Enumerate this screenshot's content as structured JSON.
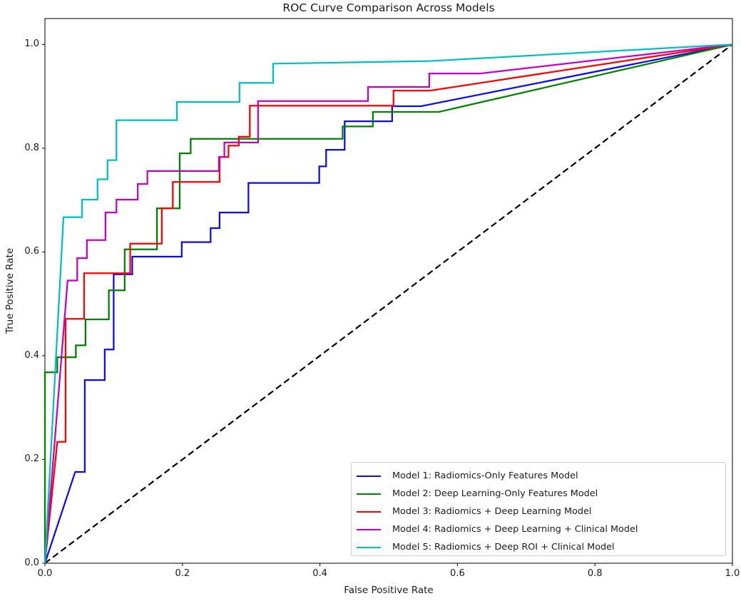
{
  "chart_data": {
    "type": "line",
    "title": "ROC Curve Comparison Across Models",
    "xlabel": "False Positive Rate",
    "ylabel": "True Positive Rate",
    "xlim": [
      0.0,
      1.0
    ],
    "ylim": [
      0.0,
      1.05
    ],
    "xticks": [
      {
        "value": 0.0,
        "label": "0.0"
      },
      {
        "value": 0.2,
        "label": "0.2"
      },
      {
        "value": 0.4,
        "label": "0.4"
      },
      {
        "value": 0.6,
        "label": "0.6"
      },
      {
        "value": 0.8,
        "label": "0.8"
      },
      {
        "value": 1.0,
        "label": "1.0"
      }
    ],
    "yticks": [
      {
        "value": 0.0,
        "label": "0.0"
      },
      {
        "value": 0.2,
        "label": "0.2"
      },
      {
        "value": 0.4,
        "label": "0.4"
      },
      {
        "value": 0.6,
        "label": "0.6"
      },
      {
        "value": 0.8,
        "label": "0.8"
      },
      {
        "value": 1.0,
        "label": "1.0"
      }
    ],
    "grid": false,
    "legend": {
      "position": "lower right"
    },
    "reference_line": {
      "style": "dashed",
      "color": "#000000",
      "points": [
        [
          0,
          0
        ],
        [
          1,
          1
        ]
      ]
    },
    "series": [
      {
        "name": "Model 1: Radiomics-Only Features Model",
        "color": "#0b0bee",
        "points": [
          [
            0,
            0
          ],
          [
            0.044,
            0.176
          ],
          [
            0.058,
            0.176
          ],
          [
            0.058,
            0.353
          ],
          [
            0.087,
            0.353
          ],
          [
            0.087,
            0.412
          ],
          [
            0.1,
            0.412
          ],
          [
            0.1,
            0.557
          ],
          [
            0.127,
            0.557
          ],
          [
            0.127,
            0.591
          ],
          [
            0.199,
            0.591
          ],
          [
            0.199,
            0.619
          ],
          [
            0.241,
            0.619
          ],
          [
            0.241,
            0.646
          ],
          [
            0.254,
            0.646
          ],
          [
            0.254,
            0.676
          ],
          [
            0.296,
            0.676
          ],
          [
            0.296,
            0.733
          ],
          [
            0.399,
            0.733
          ],
          [
            0.399,
            0.765
          ],
          [
            0.409,
            0.765
          ],
          [
            0.409,
            0.797
          ],
          [
            0.436,
            0.797
          ],
          [
            0.436,
            0.852
          ],
          [
            0.505,
            0.852
          ],
          [
            0.505,
            0.881
          ],
          [
            0.547,
            0.881
          ],
          [
            1,
            1
          ]
        ]
      },
      {
        "name": "Model 2: Deep Learning-Only Features Model",
        "color": "#008000",
        "points": [
          [
            0,
            0
          ],
          [
            0,
            0.368
          ],
          [
            0.018,
            0.368
          ],
          [
            0.018,
            0.397
          ],
          [
            0.045,
            0.397
          ],
          [
            0.045,
            0.42
          ],
          [
            0.059,
            0.42
          ],
          [
            0.059,
            0.47
          ],
          [
            0.093,
            0.47
          ],
          [
            0.093,
            0.526
          ],
          [
            0.116,
            0.526
          ],
          [
            0.116,
            0.605
          ],
          [
            0.163,
            0.605
          ],
          [
            0.163,
            0.684
          ],
          [
            0.196,
            0.684
          ],
          [
            0.196,
            0.79
          ],
          [
            0.212,
            0.79
          ],
          [
            0.212,
            0.818
          ],
          [
            0.433,
            0.818
          ],
          [
            0.433,
            0.842
          ],
          [
            0.477,
            0.842
          ],
          [
            0.477,
            0.87
          ],
          [
            0.573,
            0.87
          ],
          [
            1,
            1
          ]
        ]
      },
      {
        "name": "Model 3: Radiomics + Deep Learning Model",
        "color": "#ff0000",
        "points": [
          [
            0,
            0
          ],
          [
            0.018,
            0.234
          ],
          [
            0.03,
            0.234
          ],
          [
            0.03,
            0.471
          ],
          [
            0.057,
            0.471
          ],
          [
            0.057,
            0.559
          ],
          [
            0.124,
            0.559
          ],
          [
            0.124,
            0.616
          ],
          [
            0.17,
            0.616
          ],
          [
            0.17,
            0.684
          ],
          [
            0.186,
            0.684
          ],
          [
            0.186,
            0.735
          ],
          [
            0.254,
            0.735
          ],
          [
            0.254,
            0.783
          ],
          [
            0.267,
            0.783
          ],
          [
            0.267,
            0.805
          ],
          [
            0.282,
            0.805
          ],
          [
            0.282,
            0.822
          ],
          [
            0.298,
            0.822
          ],
          [
            0.298,
            0.882
          ],
          [
            0.507,
            0.882
          ],
          [
            0.507,
            0.911
          ],
          [
            0.56,
            0.911
          ],
          [
            1,
            1
          ]
        ]
      },
      {
        "name": "Model 4: Radiomics + Deep Learning + Clinical Model",
        "color": "#c400c4",
        "points": [
          [
            0,
            0
          ],
          [
            0.033,
            0.545
          ],
          [
            0.047,
            0.545
          ],
          [
            0.047,
            0.588
          ],
          [
            0.061,
            0.588
          ],
          [
            0.061,
            0.623
          ],
          [
            0.088,
            0.623
          ],
          [
            0.088,
            0.676
          ],
          [
            0.104,
            0.676
          ],
          [
            0.104,
            0.701
          ],
          [
            0.135,
            0.701
          ],
          [
            0.135,
            0.731
          ],
          [
            0.149,
            0.731
          ],
          [
            0.149,
            0.756
          ],
          [
            0.253,
            0.756
          ],
          [
            0.253,
            0.783
          ],
          [
            0.261,
            0.783
          ],
          [
            0.261,
            0.811
          ],
          [
            0.31,
            0.811
          ],
          [
            0.31,
            0.891
          ],
          [
            0.47,
            0.891
          ],
          [
            0.47,
            0.918
          ],
          [
            0.559,
            0.918
          ],
          [
            0.559,
            0.944
          ],
          [
            0.633,
            0.944
          ],
          [
            1,
            1
          ]
        ]
      },
      {
        "name": "Model 5: Radiomics + Deep ROI + Clinical Model",
        "color": "#00bfbf",
        "points": [
          [
            0,
            0
          ],
          [
            0.027,
            0.667
          ],
          [
            0.054,
            0.667
          ],
          [
            0.054,
            0.701
          ],
          [
            0.0765,
            0.701
          ],
          [
            0.0765,
            0.74
          ],
          [
            0.091,
            0.74
          ],
          [
            0.091,
            0.777
          ],
          [
            0.104,
            0.777
          ],
          [
            0.104,
            0.854
          ],
          [
            0.192,
            0.854
          ],
          [
            0.192,
            0.889
          ],
          [
            0.283,
            0.889
          ],
          [
            0.283,
            0.926
          ],
          [
            0.332,
            0.926
          ],
          [
            0.332,
            0.963
          ],
          [
            0.56,
            0.968
          ],
          [
            1,
            1
          ]
        ]
      }
    ]
  }
}
